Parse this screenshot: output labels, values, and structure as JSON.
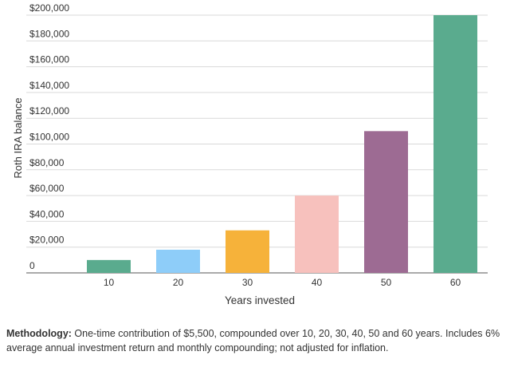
{
  "chart_data": {
    "type": "bar",
    "categories": [
      "10",
      "20",
      "30",
      "40",
      "50",
      "60"
    ],
    "values": [
      10000,
      18000,
      33000,
      60000,
      110000,
      200000
    ],
    "colors": [
      "#5aab8e",
      "#8ecdf9",
      "#f6b23a",
      "#f7c1bd",
      "#9d6b93",
      "#5aab8e"
    ],
    "xlabel": "Years invested",
    "ylabel": "Roth IRA balance",
    "ylim": [
      0,
      200000
    ],
    "yticks": [
      0,
      20000,
      40000,
      60000,
      80000,
      100000,
      120000,
      140000,
      160000,
      180000,
      200000
    ],
    "ytick_labels": [
      "0",
      "$20,000",
      "$40,000",
      "$60,000",
      "$80,000",
      "$100,000",
      "$120,000",
      "$140,000",
      "$160,000",
      "$180,000",
      "$200,000"
    ],
    "grid": "horizontal"
  },
  "methodology": {
    "label": "Methodology:",
    "text": "One-time contribution of $5,500, compounded over 10, 20, 30, 40, 50 and 60 years. Includes 6% average annual investment return and monthly compounding; not adjusted for inflation."
  }
}
